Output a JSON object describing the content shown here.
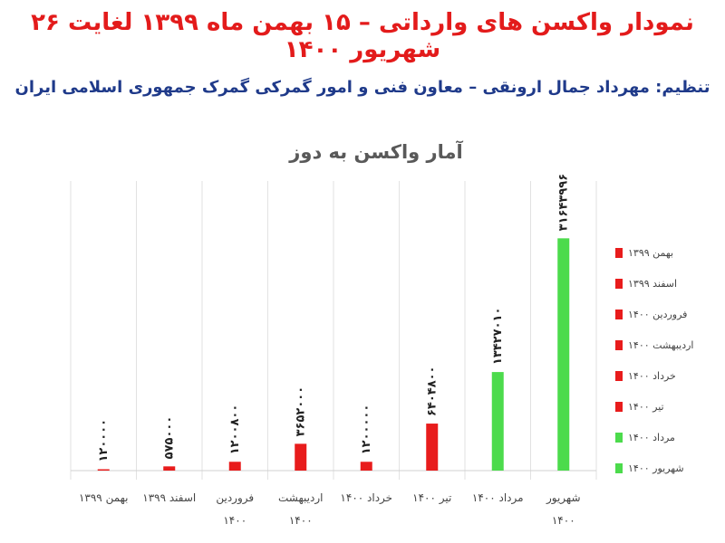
{
  "header": {
    "title": "نمودار واکسن های وارداتی – ۱۵ بهمن ماه ۱۳۹۹ لغایت ۲۶ شهریور ۱۴۰۰",
    "subtitle": "تنظیم: مهرداد جمال ارونقی – معاون فنی و امور گمرکی گمرک جمهوری اسلامی ایران"
  },
  "chart_data": {
    "type": "bar",
    "title": "آمار واکسن به دوز",
    "categories": [
      "بهمن ۱۳۹۹",
      "اسفند ۱۳۹۹",
      "فروردین ۱۴۰۰",
      "اردیبهشت ۱۴۰۰",
      "خرداد ۱۴۰۰",
      "تیر ۱۴۰۰",
      "مرداد ۱۴۰۰",
      "شهریور ۱۴۰۰"
    ],
    "category_lines": [
      [
        "بهمن ۱۳۹۹"
      ],
      [
        "اسفند ۱۳۹۹"
      ],
      [
        "فروردین",
        "۱۴۰۰"
      ],
      [
        "اردیبهشت",
        "۱۴۰۰"
      ],
      [
        "خرداد ۱۴۰۰"
      ],
      [
        "تیر ۱۴۰۰"
      ],
      [
        "مرداد ۱۴۰۰"
      ],
      [
        "شهریور",
        "۱۴۰۰"
      ]
    ],
    "values": [
      120000,
      575000,
      1200800,
      3652000,
      1200000,
      6404800,
      13427010,
      31643996
    ],
    "data_labels": [
      "۱۲۰۰۰۰",
      "۵۷۵۰۰۰",
      "۱۲۰۰۸۰۰",
      "۳۶۵۲۰۰۰",
      "۱۲۰۰۰۰۰",
      "۶۴۰۴۸۰۰",
      "۱۳۴۲۷۰۱۰",
      "۳۱۶۴۳۹۹۶"
    ],
    "colors": [
      "#e81c1c",
      "#e81c1c",
      "#e81c1c",
      "#e81c1c",
      "#e81c1c",
      "#e81c1c",
      "#4cdb4c",
      "#4cdb4c"
    ],
    "legend": [
      "بهمن ۱۳۹۹",
      "اسفند ۱۳۹۹",
      "فروردین ۱۴۰۰",
      "اردیبهشت ۱۴۰۰",
      "خرداد ۱۴۰۰",
      "تیر ۱۴۰۰",
      "مرداد ۱۴۰۰",
      "شهریور ۱۴۰۰"
    ],
    "legend_position": "right",
    "ylim": [
      0,
      36000000
    ],
    "grid": "vertical separators"
  }
}
